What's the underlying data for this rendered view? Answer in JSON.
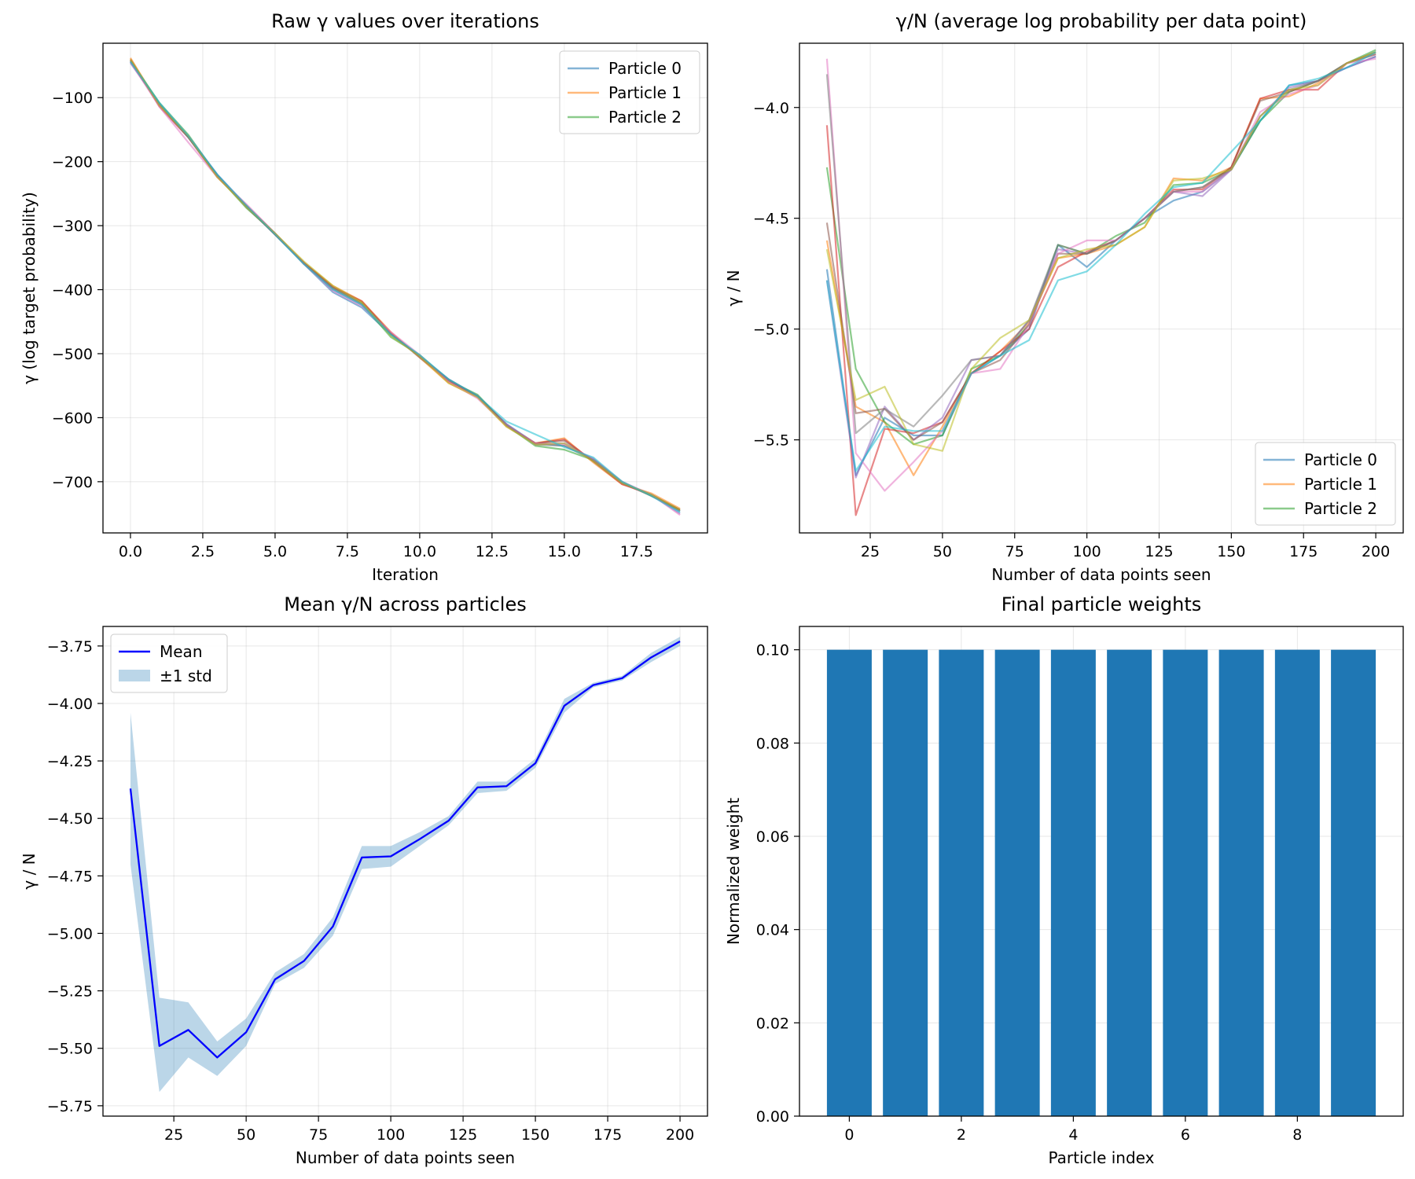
{
  "chart_data": [
    {
      "type": "line",
      "title": "Raw γ values over iterations",
      "xlabel": "Iteration",
      "ylabel": "γ (log target probability)",
      "xlim": [
        -0.95,
        19.95
      ],
      "ylim": [
        -780,
        -15
      ],
      "xticks": [
        "0.0",
        "2.5",
        "5.0",
        "7.5",
        "10.0",
        "12.5",
        "15.0",
        "17.5"
      ],
      "xtick_values": [
        0,
        2.5,
        5,
        7.5,
        10,
        12.5,
        15,
        17.5
      ],
      "yticks": [
        "−100",
        "−200",
        "−300",
        "−400",
        "−500",
        "−600",
        "−700"
      ],
      "ytick_values": [
        -100,
        -200,
        -300,
        -400,
        -500,
        -600,
        -700
      ],
      "grid": true,
      "legend": {
        "placement": "top-right",
        "entries": [
          "Particle 0",
          "Particle 1",
          "Particle 2"
        ]
      },
      "x": [
        0,
        1,
        2,
        3,
        4,
        5,
        6,
        7,
        8,
        9,
        10,
        11,
        12,
        13,
        14,
        15,
        16,
        17,
        18,
        19
      ],
      "series": [
        {
          "name": "Particle 0",
          "color": "#1f77b4",
          "values": [
            -44,
            -110,
            -162,
            -220,
            -270,
            -314,
            -360,
            -404,
            -428,
            -470,
            -504,
            -540,
            -566,
            -610,
            -640,
            -644,
            -664,
            -702,
            -720,
            -746
          ]
        },
        {
          "name": "Particle 1",
          "color": "#ff7f0e",
          "values": [
            -38,
            -112,
            -160,
            -224,
            -268,
            -312,
            -358,
            -394,
            -418,
            -466,
            -506,
            -546,
            -568,
            -614,
            -640,
            -632,
            -670,
            -704,
            -718,
            -742
          ]
        },
        {
          "name": "Particle 2",
          "color": "#2ca02c",
          "values": [
            -42,
            -108,
            -158,
            -222,
            -272,
            -312,
            -360,
            -398,
            -422,
            -474,
            -502,
            -542,
            -564,
            -612,
            -644,
            -650,
            -666,
            -700,
            -722,
            -744
          ]
        },
        {
          "color": "#d62728",
          "values": [
            -40,
            -114,
            -162,
            -224,
            -268,
            -314,
            -358,
            -396,
            -418,
            -468,
            -504,
            -544,
            -566,
            -612,
            -640,
            -634,
            -668,
            -704,
            -720,
            -744
          ]
        },
        {
          "color": "#9467bd",
          "values": [
            -46,
            -110,
            -160,
            -220,
            -268,
            -312,
            -360,
            -400,
            -424,
            -470,
            -504,
            -540,
            -568,
            -610,
            -642,
            -640,
            -666,
            -702,
            -720,
            -750
          ]
        },
        {
          "color": "#8c564b",
          "values": [
            -42,
            -112,
            -162,
            -222,
            -270,
            -314,
            -358,
            -396,
            -420,
            -468,
            -506,
            -542,
            -566,
            -612,
            -640,
            -636,
            -668,
            -702,
            -722,
            -744
          ]
        },
        {
          "color": "#e377c2",
          "values": [
            -44,
            -114,
            -170,
            -224,
            -266,
            -312,
            -360,
            -402,
            -426,
            -466,
            -502,
            -544,
            -570,
            -612,
            -640,
            -642,
            -664,
            -700,
            -720,
            -752
          ]
        },
        {
          "color": "#7f7f7f",
          "values": [
            -42,
            -110,
            -162,
            -222,
            -270,
            -312,
            -360,
            -398,
            -422,
            -470,
            -504,
            -540,
            -566,
            -612,
            -642,
            -644,
            -666,
            -702,
            -720,
            -746
          ]
        },
        {
          "color": "#bcbd22",
          "values": [
            -40,
            -112,
            -160,
            -224,
            -270,
            -312,
            -356,
            -394,
            -420,
            -472,
            -504,
            -546,
            -568,
            -614,
            -642,
            -640,
            -668,
            -702,
            -720,
            -744
          ]
        },
        {
          "color": "#17becf",
          "values": [
            -44,
            -108,
            -160,
            -220,
            -268,
            -314,
            -360,
            -400,
            -424,
            -470,
            -502,
            -540,
            -566,
            -606,
            -626,
            -646,
            -662,
            -700,
            -722,
            -748
          ]
        }
      ]
    },
    {
      "type": "line",
      "title": "γ/N (average log probability per data point)",
      "xlabel": "Number of data points seen",
      "ylabel": "γ / N",
      "xlim": [
        0.5,
        209.5
      ],
      "ylim": [
        -5.92,
        -3.71
      ],
      "xticks": [
        "25",
        "50",
        "75",
        "100",
        "125",
        "150",
        "175",
        "200"
      ],
      "xtick_values": [
        25,
        50,
        75,
        100,
        125,
        150,
        175,
        200
      ],
      "yticks": [
        "−4.0",
        "−4.5",
        "−5.0",
        "−5.5"
      ],
      "ytick_values": [
        -4.0,
        -4.5,
        -5.0,
        -5.5
      ],
      "grid": true,
      "legend": {
        "placement": "bottom-right",
        "entries": [
          "Particle 0",
          "Particle 1",
          "Particle 2"
        ]
      },
      "x": [
        10,
        20,
        30,
        40,
        50,
        60,
        70,
        80,
        90,
        100,
        110,
        120,
        130,
        140,
        150,
        160,
        170,
        180,
        190,
        200
      ],
      "series": [
        {
          "name": "Particle 0",
          "color": "#1f77b4",
          "values": [
            -4.73,
            -5.66,
            -5.4,
            -5.48,
            -5.48,
            -5.2,
            -5.12,
            -5.0,
            -4.62,
            -4.72,
            -4.6,
            -4.5,
            -4.42,
            -4.38,
            -4.28,
            -4.06,
            -3.9,
            -3.88,
            -3.82,
            -3.77
          ]
        },
        {
          "name": "Particle 1",
          "color": "#ff7f0e",
          "values": [
            -4.6,
            -5.35,
            -5.42,
            -5.66,
            -5.44,
            -5.2,
            -5.1,
            -4.97,
            -4.68,
            -4.66,
            -4.62,
            -4.54,
            -4.32,
            -4.33,
            -4.27,
            -3.96,
            -3.95,
            -3.89,
            -3.8,
            -3.75
          ]
        },
        {
          "name": "Particle 2",
          "color": "#2ca02c",
          "values": [
            -4.27,
            -5.18,
            -5.42,
            -5.52,
            -5.48,
            -5.18,
            -5.12,
            -4.98,
            -4.62,
            -4.66,
            -4.58,
            -4.52,
            -4.35,
            -4.34,
            -4.28,
            -4.06,
            -3.93,
            -3.88,
            -3.8,
            -3.74
          ]
        },
        {
          "color": "#d62728",
          "values": [
            -4.08,
            -5.84,
            -5.45,
            -5.47,
            -5.42,
            -5.2,
            -5.1,
            -5.0,
            -4.72,
            -4.65,
            -4.6,
            -4.5,
            -4.37,
            -4.37,
            -4.27,
            -3.96,
            -3.92,
            -3.92,
            -3.8,
            -3.76
          ]
        },
        {
          "color": "#9467bd",
          "values": [
            -4.78,
            -5.67,
            -5.35,
            -5.5,
            -5.4,
            -5.14,
            -5.12,
            -4.96,
            -4.64,
            -4.66,
            -4.6,
            -4.5,
            -4.38,
            -4.4,
            -4.28,
            -4.04,
            -3.91,
            -3.88,
            -3.82,
            -3.77
          ]
        },
        {
          "color": "#8c564b",
          "values": [
            -4.52,
            -5.38,
            -5.36,
            -5.5,
            -5.42,
            -5.2,
            -5.14,
            -4.98,
            -4.66,
            -4.66,
            -4.6,
            -4.5,
            -4.38,
            -4.36,
            -4.27,
            -3.97,
            -3.93,
            -3.88,
            -3.8,
            -3.75
          ]
        },
        {
          "color": "#e377c2",
          "values": [
            -3.78,
            -5.56,
            -5.73,
            -5.6,
            -5.46,
            -5.2,
            -5.18,
            -4.98,
            -4.66,
            -4.6,
            -4.6,
            -4.5,
            -4.38,
            -4.38,
            -4.28,
            -4.02,
            -3.94,
            -3.9,
            -3.8,
            -3.78
          ]
        },
        {
          "color": "#7f7f7f",
          "values": [
            -3.85,
            -5.47,
            -5.36,
            -5.44,
            -5.3,
            -5.14,
            -5.12,
            -4.96,
            -4.62,
            -4.66,
            -4.6,
            -4.5,
            -4.38,
            -4.36,
            -4.28,
            -4.04,
            -3.92,
            -3.88,
            -3.8,
            -3.76
          ]
        },
        {
          "color": "#bcbd22",
          "values": [
            -4.64,
            -5.32,
            -5.26,
            -5.52,
            -5.55,
            -5.18,
            -5.04,
            -4.96,
            -4.68,
            -4.64,
            -4.62,
            -4.54,
            -4.33,
            -4.32,
            -4.28,
            -4.04,
            -3.92,
            -3.9,
            -3.8,
            -3.75
          ]
        },
        {
          "color": "#17becf",
          "values": [
            -4.78,
            -5.64,
            -5.44,
            -5.46,
            -5.46,
            -5.2,
            -5.12,
            -5.05,
            -4.78,
            -4.74,
            -4.62,
            -4.48,
            -4.36,
            -4.34,
            -4.2,
            -4.06,
            -3.9,
            -3.87,
            -3.82,
            -3.75
          ]
        }
      ]
    },
    {
      "type": "line",
      "title": "Mean γ/N across particles",
      "xlabel": "Number of data points seen",
      "ylabel": "γ / N",
      "xlim": [
        0.5,
        209.5
      ],
      "ylim": [
        -5.795,
        -3.665
      ],
      "xticks": [
        "25",
        "50",
        "75",
        "100",
        "125",
        "150",
        "175",
        "200"
      ],
      "xtick_values": [
        25,
        50,
        75,
        100,
        125,
        150,
        175,
        200
      ],
      "yticks": [
        "−3.75",
        "−4.00",
        "−4.25",
        "−4.50",
        "−4.75",
        "−5.00",
        "−5.25",
        "−5.50",
        "−5.75"
      ],
      "ytick_values": [
        -3.75,
        -4.0,
        -4.25,
        -4.5,
        -4.75,
        -5.0,
        -5.25,
        -5.5,
        -5.75
      ],
      "grid": true,
      "legend": {
        "placement": "top-left",
        "entries": [
          "Mean",
          "±1 std"
        ]
      },
      "x": [
        10,
        20,
        30,
        40,
        50,
        60,
        70,
        80,
        90,
        100,
        110,
        120,
        130,
        140,
        150,
        160,
        170,
        180,
        190,
        200
      ],
      "series": [
        {
          "name": "Mean",
          "color": "#0000ff",
          "values": [
            -4.37,
            -5.49,
            -5.42,
            -5.54,
            -5.43,
            -5.2,
            -5.12,
            -4.97,
            -4.67,
            -4.665,
            -4.59,
            -4.51,
            -4.365,
            -4.36,
            -4.26,
            -4.01,
            -3.92,
            -3.89,
            -3.8,
            -3.73
          ]
        },
        {
          "name": "±1 std",
          "color": "#1f77b4",
          "upper": [
            -4.04,
            -5.28,
            -5.3,
            -5.47,
            -5.37,
            -5.17,
            -5.09,
            -4.93,
            -4.62,
            -4.62,
            -4.56,
            -4.49,
            -4.34,
            -4.34,
            -4.24,
            -3.98,
            -3.91,
            -3.88,
            -3.78,
            -3.71
          ],
          "lower": [
            -4.7,
            -5.69,
            -5.54,
            -5.62,
            -5.49,
            -5.22,
            -5.15,
            -5.01,
            -4.72,
            -4.71,
            -4.62,
            -4.53,
            -4.39,
            -4.38,
            -4.28,
            -4.04,
            -3.93,
            -3.9,
            -3.82,
            -3.75
          ]
        }
      ]
    },
    {
      "type": "bar",
      "title": "Final particle weights",
      "xlabel": "Particle index",
      "ylabel": "Normalized weight",
      "xlim": [
        -0.89,
        9.89
      ],
      "ylim": [
        0,
        0.105
      ],
      "xticks": [
        "0",
        "2",
        "4",
        "6",
        "8"
      ],
      "xtick_values": [
        0,
        2,
        4,
        6,
        8
      ],
      "yticks": [
        "0.00",
        "0.02",
        "0.04",
        "0.06",
        "0.08",
        "0.10"
      ],
      "ytick_values": [
        0,
        0.02,
        0.04,
        0.06,
        0.08,
        0.1
      ],
      "grid": true,
      "bar_color": "#1f77b4",
      "categories": [
        0,
        1,
        2,
        3,
        4,
        5,
        6,
        7,
        8,
        9
      ],
      "values": [
        0.1,
        0.1,
        0.1,
        0.1,
        0.1,
        0.1,
        0.1,
        0.1,
        0.1,
        0.1
      ]
    }
  ]
}
